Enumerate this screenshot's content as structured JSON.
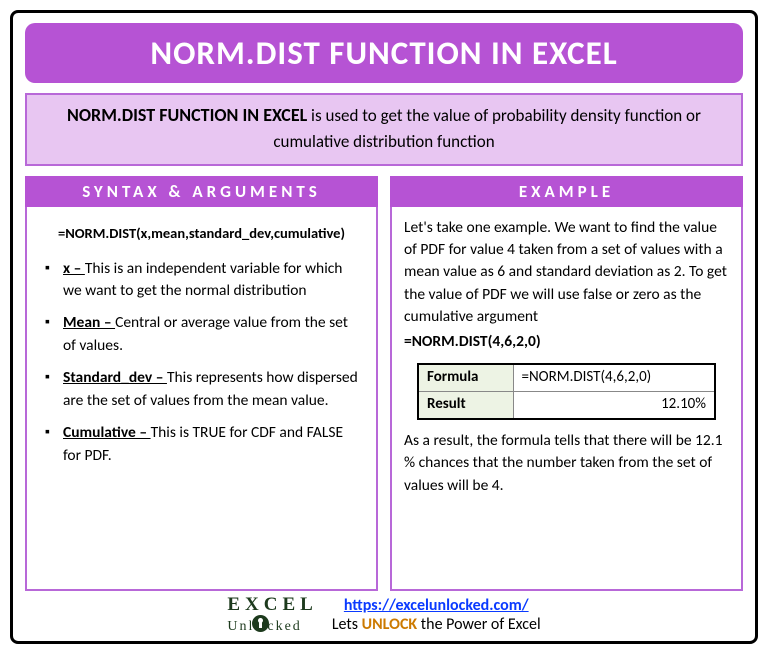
{
  "title": "NORM.DIST FUNCTION IN EXCEL",
  "intro": {
    "bold": "NORM.DIST FUNCTION IN EXCEL",
    "rest": " is used to get the value of probability density function or cumulative distribution function"
  },
  "left": {
    "header": "SYNTAX & ARGUMENTS",
    "syntax": "=NORM.DIST(x,mean,standard_dev,cumulative)",
    "args": [
      {
        "name": "x – ",
        "desc": "This is an independent variable for which we want to get the normal distribution"
      },
      {
        "name": "Mean – ",
        "desc": "Central or average value from the set of values."
      },
      {
        "name": "Standard_dev – ",
        "desc": "This represents how dispersed are the set of values from the mean value."
      },
      {
        "name": "Cumulative – ",
        "desc": "This is TRUE for CDF and FALSE for PDF."
      }
    ]
  },
  "right": {
    "header": "EXAMPLE",
    "para": "Let's take one example. We want to find the value of PDF for value 4 taken from a set of values with a mean value as 6 and standard deviation as 2. To get the value of PDF we will use false or zero as the cumulative argument",
    "formula": "=NORM.DIST(4,6,2,0)",
    "table": {
      "r1c1": "Formula",
      "r1c2": "=NORM.DIST(4,6,2,0)",
      "r2c1": "Result",
      "r2c2": "12.10%"
    },
    "result_text": "As a result, the formula tells that there will be 12.1 % chances that the number taken from the set of values will be 4."
  },
  "footer": {
    "url": "https://excelunlocked.com/",
    "tag_pre": "Lets ",
    "tag_unlock": "UNLOCK",
    "tag_post": " the Power of Excel"
  }
}
